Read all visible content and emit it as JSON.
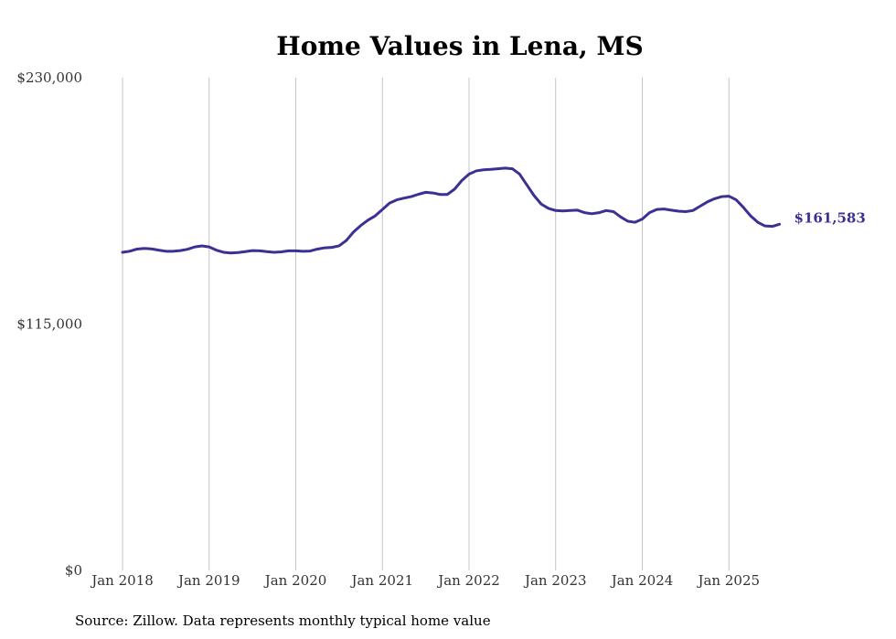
{
  "chart_data": {
    "type": "line",
    "title": "Home Values in Lena, MS",
    "xlabel": "",
    "ylabel": "",
    "ylim": [
      0,
      230000
    ],
    "y_ticks": [
      {
        "value": 0,
        "label": "$0"
      },
      {
        "value": 115000,
        "label": "$115,000"
      },
      {
        "value": 230000,
        "label": "$230,000"
      }
    ],
    "x_ticks": [
      {
        "index": 0,
        "label": "Jan 2018"
      },
      {
        "index": 12,
        "label": "Jan 2019"
      },
      {
        "index": 24,
        "label": "Jan 2020"
      },
      {
        "index": 36,
        "label": "Jan 2021"
      },
      {
        "index": 48,
        "label": "Jan 2022"
      },
      {
        "index": 60,
        "label": "Jan 2023"
      },
      {
        "index": 72,
        "label": "Jan 2024"
      },
      {
        "index": 84,
        "label": "Jan 2025"
      }
    ],
    "grid": "vertical",
    "line_color": "#3b3194",
    "series": [
      {
        "name": "Typical home value",
        "start": "2018-01",
        "frequency": "monthly",
        "values": [
          148500,
          149000,
          150000,
          150300,
          150100,
          149500,
          149000,
          149000,
          149300,
          149900,
          151000,
          151500,
          151000,
          149500,
          148500,
          148200,
          148400,
          148800,
          149300,
          149200,
          148800,
          148500,
          148700,
          149200,
          149200,
          149000,
          149100,
          150000,
          150600,
          150800,
          151500,
          154000,
          158000,
          161000,
          163500,
          165500,
          168500,
          171500,
          173000,
          173800,
          174500,
          175600,
          176500,
          176200,
          175500,
          175500,
          178000,
          182000,
          185000,
          186500,
          187000,
          187200,
          187500,
          187800,
          187500,
          185000,
          180000,
          175000,
          171000,
          169000,
          168000,
          167800,
          168000,
          168200,
          167000,
          166500,
          167000,
          168000,
          167500,
          165000,
          163000,
          162500,
          164000,
          167000,
          168500,
          168700,
          168200,
          167700,
          167500,
          168000,
          170000,
          172000,
          173500,
          174500,
          174700,
          173000,
          169500,
          165500,
          162500,
          160800,
          160600,
          161583
        ]
      }
    ],
    "end_label": "$161,583",
    "source": "Source: Zillow. Data represents monthly typical home value"
  }
}
